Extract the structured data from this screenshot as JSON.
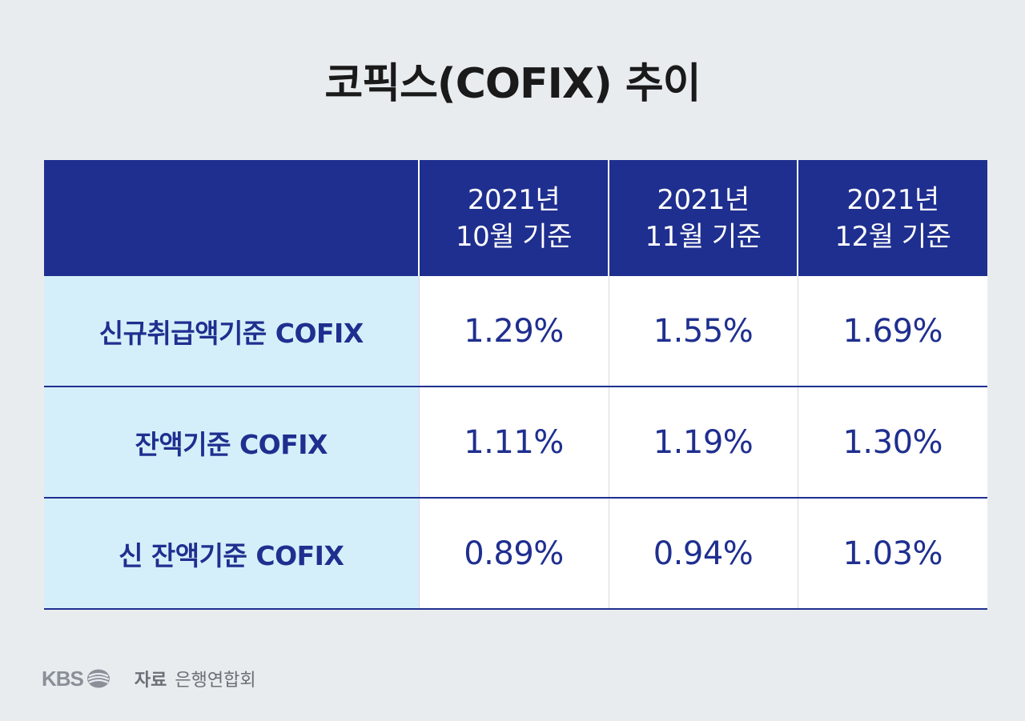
{
  "title": "코픽스(COFIX) 추이",
  "chart_data": {
    "type": "table",
    "title": "코픽스(COFIX) 추이",
    "columns": [
      {
        "line1": "2021년",
        "line2": "10월 기준"
      },
      {
        "line1": "2021년",
        "line2": "11월 기준"
      },
      {
        "line1": "2021년",
        "line2": "12월 기준"
      }
    ],
    "rows": [
      {
        "label": "신규취급액기준 COFIX",
        "values": [
          "1.29%",
          "1.55%",
          "1.69%"
        ]
      },
      {
        "label": "잔액기준 COFIX",
        "values": [
          "1.11%",
          "1.19%",
          "1.30%"
        ]
      },
      {
        "label": "신 잔액기준 COFIX",
        "values": [
          "0.89%",
          "0.94%",
          "1.03%"
        ]
      }
    ]
  },
  "footer": {
    "logo_text": "KBS",
    "source_label": "자료",
    "source_name": "은행연합회"
  },
  "colors": {
    "background": "#e9ecef",
    "header_bg": "#1f2f8f",
    "label_bg": "#d5effa",
    "text_accent": "#1f2f8f"
  }
}
